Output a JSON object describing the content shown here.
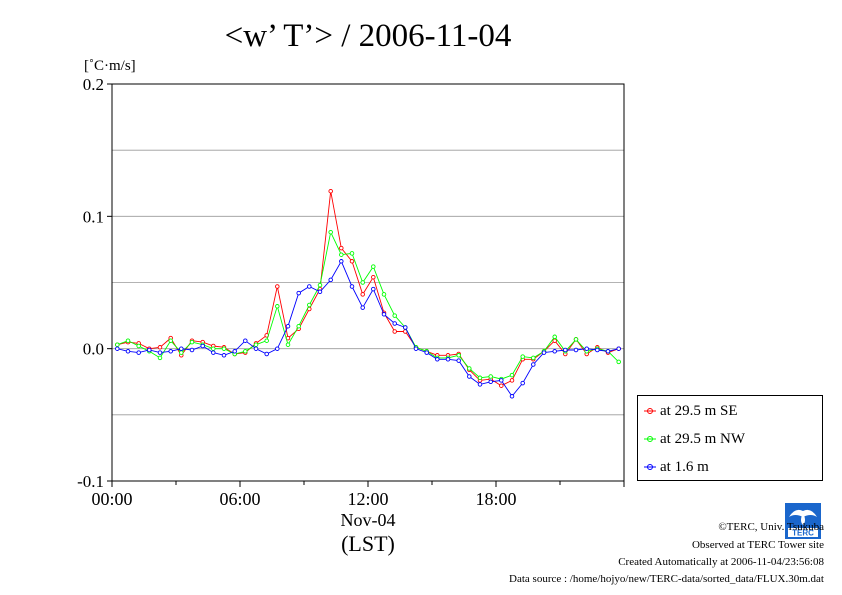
{
  "chart_data": {
    "type": "line",
    "title": "<w’ T’> / 2006-11-04",
    "ylabel": "[˚C·m/s]",
    "xlabel": "(LST)",
    "x_date_label": "Nov-04",
    "ylim": [
      -0.1,
      0.2
    ],
    "xlim": [
      0,
      24
    ],
    "y_ticks": [
      {
        "value": -0.1,
        "label": "-0.1"
      },
      {
        "value": 0.0,
        "label": "0.0"
      },
      {
        "value": 0.1,
        "label": "0.1"
      },
      {
        "value": 0.2,
        "label": "0.2"
      }
    ],
    "x_ticks": [
      {
        "value": 0,
        "label": "00:00"
      },
      {
        "value": 6,
        "label": "06:00"
      },
      {
        "value": 12,
        "label": "12:00"
      },
      {
        "value": 18,
        "label": "18:00"
      }
    ],
    "grid": "horizontal",
    "legend_position": "right",
    "x_hours": [
      0.25,
      0.75,
      1.25,
      1.75,
      2.25,
      2.75,
      3.25,
      3.75,
      4.25,
      4.75,
      5.25,
      5.75,
      6.25,
      6.75,
      7.25,
      7.75,
      8.25,
      8.75,
      9.25,
      9.75,
      10.25,
      10.75,
      11.25,
      11.75,
      12.25,
      12.75,
      13.25,
      13.75,
      14.25,
      14.75,
      15.25,
      15.75,
      16.25,
      16.75,
      17.25,
      17.75,
      18.25,
      18.75,
      19.25,
      19.75,
      20.25,
      20.75,
      21.25,
      21.75,
      22.25,
      22.75,
      23.25,
      23.75
    ],
    "series": [
      {
        "name": "at 29.5 m SE",
        "color": "#ff0000",
        "values": [
          0.003,
          0.005,
          0.004,
          0.0,
          0.001,
          0.008,
          -0.005,
          0.006,
          0.005,
          0.002,
          0.001,
          -0.004,
          -0.003,
          0.004,
          0.01,
          0.047,
          0.008,
          0.015,
          0.03,
          0.045,
          0.119,
          0.076,
          0.066,
          0.041,
          0.054,
          0.027,
          0.013,
          0.013,
          0.001,
          -0.002,
          -0.005,
          -0.005,
          -0.004,
          -0.016,
          -0.024,
          -0.023,
          -0.028,
          -0.024,
          -0.008,
          -0.008,
          -0.002,
          0.006,
          -0.004,
          0.007,
          -0.004,
          0.001,
          -0.003,
          0.0
        ]
      },
      {
        "name": "at 29.5 m NW",
        "color": "#00ff00",
        "values": [
          0.003,
          0.006,
          0.002,
          -0.002,
          -0.007,
          0.006,
          -0.003,
          0.005,
          0.003,
          0.0,
          0.0,
          -0.004,
          -0.002,
          0.003,
          0.006,
          0.032,
          0.003,
          0.017,
          0.033,
          0.048,
          0.088,
          0.071,
          0.072,
          0.05,
          0.062,
          0.041,
          0.025,
          0.016,
          0.001,
          -0.002,
          -0.007,
          -0.007,
          -0.005,
          -0.015,
          -0.022,
          -0.021,
          -0.023,
          -0.02,
          -0.006,
          -0.007,
          -0.002,
          0.009,
          -0.002,
          0.007,
          -0.002,
          0.0,
          -0.002,
          -0.01
        ]
      },
      {
        "name": "at 1.6 m",
        "color": "#0000ff",
        "values": [
          0.0,
          -0.002,
          -0.003,
          -0.001,
          -0.003,
          -0.002,
          0.0,
          -0.001,
          0.002,
          -0.003,
          -0.005,
          -0.002,
          0.006,
          0.0,
          -0.004,
          0.0,
          0.017,
          0.042,
          0.047,
          0.043,
          0.052,
          0.066,
          0.047,
          0.031,
          0.045,
          0.026,
          0.019,
          0.016,
          0.0,
          -0.003,
          -0.008,
          -0.008,
          -0.009,
          -0.021,
          -0.027,
          -0.025,
          -0.024,
          -0.036,
          -0.026,
          -0.012,
          -0.003,
          -0.002,
          -0.001,
          -0.001,
          0.0,
          -0.001,
          -0.002,
          0.0
        ]
      }
    ]
  },
  "footer": {
    "copyright": "©TERC, Univ. Tsukuba",
    "observed": "Observed at TERC Tower site",
    "created": "Created Automatically at 2006-11-04/23:56:08",
    "source": "Data source : /home/hojyo/new/TERC-data/sorted_data/FLUX.30m.dat"
  },
  "logo": {
    "text": "TERC",
    "color": "#1a66cc"
  }
}
